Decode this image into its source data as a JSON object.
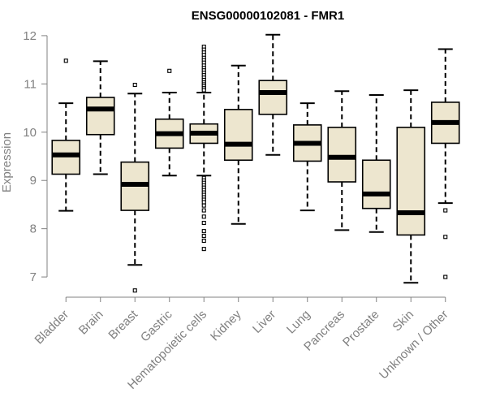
{
  "chart_data": {
    "type": "box",
    "title": "ENSG00000102081 - FMR1",
    "ylabel": "Expression",
    "xlabel": "",
    "ylim": [
      6.85,
      12.15
    ],
    "yticks": [
      7,
      8,
      9,
      10,
      11,
      12
    ],
    "grid": false,
    "colors": {
      "box_fill": "#ede6cf",
      "stroke": "#000000",
      "axis_text": "#808080"
    },
    "categories": [
      "Bladder",
      "Brain",
      "Breast",
      "Gastric",
      "Hematopoietic cells",
      "Kidney",
      "Liver",
      "Lung",
      "Pancreas",
      "Prostate",
      "Skin",
      "Unknown / Other"
    ],
    "boxes": [
      {
        "name": "Bladder",
        "whisker_low": 8.37,
        "q1": 9.13,
        "median": 9.53,
        "q3": 9.83,
        "whisker_high": 10.6,
        "outliers": [
          11.48
        ]
      },
      {
        "name": "Brain",
        "whisker_low": 9.13,
        "q1": 9.95,
        "median": 10.48,
        "q3": 10.72,
        "whisker_high": 11.47,
        "outliers": []
      },
      {
        "name": "Breast",
        "whisker_low": 7.25,
        "q1": 8.38,
        "median": 8.92,
        "q3": 9.38,
        "whisker_high": 10.8,
        "outliers": [
          10.98,
          6.72
        ]
      },
      {
        "name": "Gastric",
        "whisker_low": 9.1,
        "q1": 9.67,
        "median": 9.97,
        "q3": 10.27,
        "whisker_high": 10.82,
        "outliers": [
          11.27
        ]
      },
      {
        "name": "Hematopoietic cells",
        "whisker_low": 9.1,
        "q1": 9.77,
        "median": 9.98,
        "q3": 10.17,
        "whisker_high": 10.82,
        "outliers": [
          11.77,
          11.71,
          11.65,
          11.6,
          11.54,
          11.49,
          11.44,
          11.38,
          11.33,
          11.28,
          11.23,
          11.18,
          11.13,
          11.08,
          11.03,
          10.99,
          10.95,
          10.91,
          10.87,
          9.05,
          9.0,
          8.95,
          8.9,
          8.85,
          8.8,
          8.75,
          8.7,
          8.65,
          8.6,
          8.55,
          8.48,
          8.38,
          8.25,
          8.12,
          7.95,
          7.85,
          7.75,
          7.58
        ]
      },
      {
        "name": "Kidney",
        "whisker_low": 8.1,
        "q1": 9.42,
        "median": 9.75,
        "q3": 10.47,
        "whisker_high": 11.38,
        "outliers": []
      },
      {
        "name": "Liver",
        "whisker_low": 9.53,
        "q1": 10.37,
        "median": 10.82,
        "q3": 11.07,
        "whisker_high": 12.02,
        "outliers": []
      },
      {
        "name": "Lung",
        "whisker_low": 8.38,
        "q1": 9.4,
        "median": 9.77,
        "q3": 10.15,
        "whisker_high": 10.6,
        "outliers": []
      },
      {
        "name": "Pancreas",
        "whisker_low": 7.97,
        "q1": 8.97,
        "median": 9.48,
        "q3": 10.1,
        "whisker_high": 10.85,
        "outliers": []
      },
      {
        "name": "Prostate",
        "whisker_low": 7.93,
        "q1": 8.42,
        "median": 8.72,
        "q3": 9.42,
        "whisker_high": 10.77,
        "outliers": []
      },
      {
        "name": "Skin",
        "whisker_low": 6.88,
        "q1": 7.87,
        "median": 8.33,
        "q3": 10.1,
        "whisker_high": 10.87,
        "outliers": []
      },
      {
        "name": "Unknown / Other",
        "whisker_low": 8.53,
        "q1": 9.77,
        "median": 10.2,
        "q3": 10.62,
        "whisker_high": 11.72,
        "outliers": [
          8.38,
          7.83,
          7.0
        ]
      }
    ]
  }
}
